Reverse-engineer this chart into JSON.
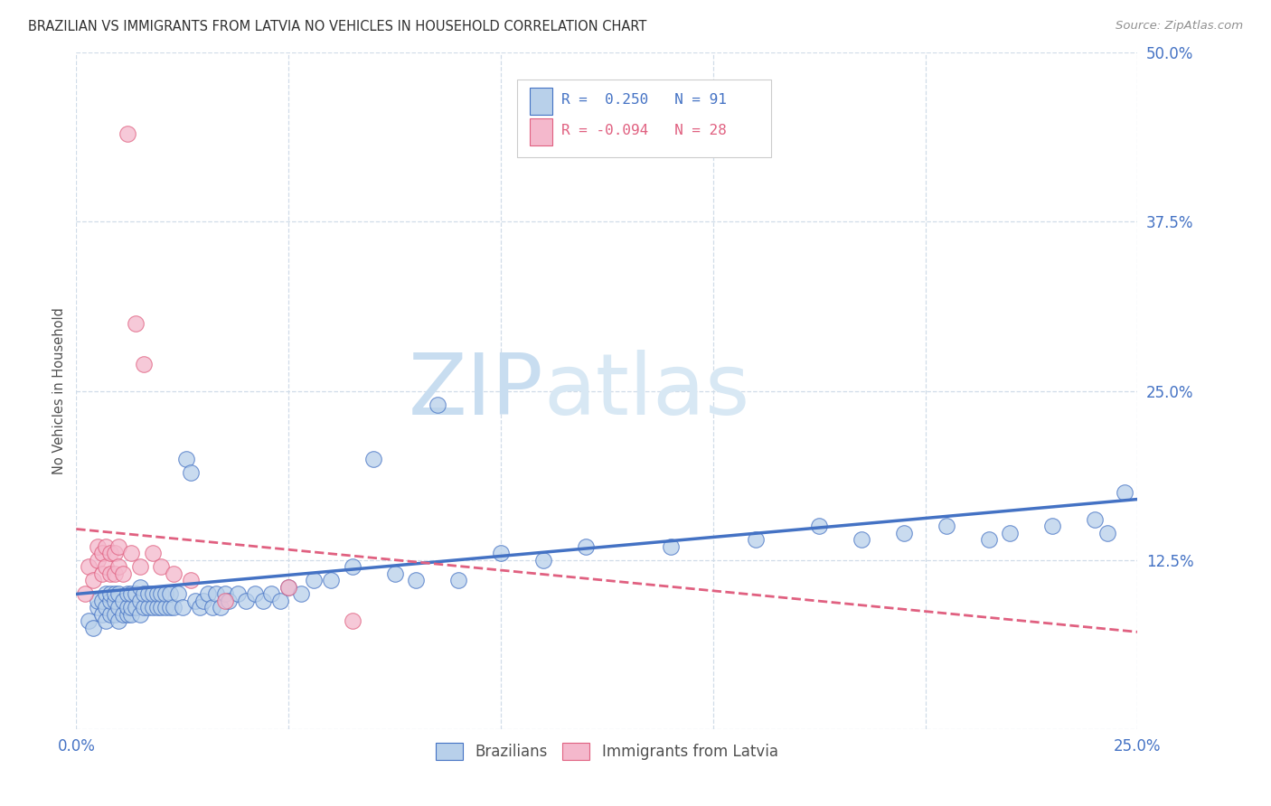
{
  "title": "BRAZILIAN VS IMMIGRANTS FROM LATVIA NO VEHICLES IN HOUSEHOLD CORRELATION CHART",
  "source": "Source: ZipAtlas.com",
  "ylabel": "No Vehicles in Household",
  "xlim": [
    0.0,
    0.25
  ],
  "ylim": [
    0.0,
    0.5
  ],
  "watermark_zip": "ZIP",
  "watermark_atlas": "atlas",
  "blue_color": "#b8d0ea",
  "pink_color": "#f4b8cc",
  "line_blue": "#4472c4",
  "line_pink": "#e06080",
  "grid_color": "#d0dce8",
  "title_color": "#303030",
  "tick_color": "#4472c4",
  "brazilians_x": [
    0.003,
    0.004,
    0.005,
    0.005,
    0.006,
    0.006,
    0.007,
    0.007,
    0.007,
    0.008,
    0.008,
    0.008,
    0.009,
    0.009,
    0.009,
    0.01,
    0.01,
    0.01,
    0.011,
    0.011,
    0.012,
    0.012,
    0.012,
    0.013,
    0.013,
    0.013,
    0.014,
    0.014,
    0.015,
    0.015,
    0.015,
    0.016,
    0.016,
    0.017,
    0.017,
    0.018,
    0.018,
    0.019,
    0.019,
    0.02,
    0.02,
    0.021,
    0.021,
    0.022,
    0.022,
    0.023,
    0.024,
    0.025,
    0.026,
    0.027,
    0.028,
    0.029,
    0.03,
    0.031,
    0.032,
    0.033,
    0.034,
    0.035,
    0.036,
    0.038,
    0.04,
    0.042,
    0.044,
    0.046,
    0.048,
    0.05,
    0.053,
    0.056,
    0.06,
    0.065,
    0.07,
    0.075,
    0.08,
    0.085,
    0.09,
    0.1,
    0.11,
    0.12,
    0.14,
    0.16,
    0.175,
    0.185,
    0.195,
    0.205,
    0.215,
    0.22,
    0.23,
    0.24,
    0.243,
    0.247
  ],
  "brazilians_y": [
    0.08,
    0.075,
    0.09,
    0.095,
    0.085,
    0.095,
    0.08,
    0.09,
    0.1,
    0.085,
    0.095,
    0.1,
    0.085,
    0.095,
    0.1,
    0.08,
    0.09,
    0.1,
    0.085,
    0.095,
    0.085,
    0.09,
    0.1,
    0.085,
    0.09,
    0.1,
    0.09,
    0.1,
    0.085,
    0.095,
    0.105,
    0.09,
    0.1,
    0.09,
    0.1,
    0.09,
    0.1,
    0.09,
    0.1,
    0.09,
    0.1,
    0.09,
    0.1,
    0.09,
    0.1,
    0.09,
    0.1,
    0.09,
    0.2,
    0.19,
    0.095,
    0.09,
    0.095,
    0.1,
    0.09,
    0.1,
    0.09,
    0.1,
    0.095,
    0.1,
    0.095,
    0.1,
    0.095,
    0.1,
    0.095,
    0.105,
    0.1,
    0.11,
    0.11,
    0.12,
    0.2,
    0.115,
    0.11,
    0.24,
    0.11,
    0.13,
    0.125,
    0.135,
    0.135,
    0.14,
    0.15,
    0.14,
    0.145,
    0.15,
    0.14,
    0.145,
    0.15,
    0.155,
    0.145,
    0.175
  ],
  "latvia_x": [
    0.002,
    0.003,
    0.004,
    0.005,
    0.005,
    0.006,
    0.006,
    0.007,
    0.007,
    0.008,
    0.008,
    0.009,
    0.009,
    0.01,
    0.01,
    0.011,
    0.012,
    0.013,
    0.014,
    0.015,
    0.016,
    0.018,
    0.02,
    0.023,
    0.027,
    0.035,
    0.05,
    0.065
  ],
  "latvia_y": [
    0.1,
    0.12,
    0.11,
    0.125,
    0.135,
    0.115,
    0.13,
    0.12,
    0.135,
    0.115,
    0.13,
    0.115,
    0.13,
    0.12,
    0.135,
    0.115,
    0.44,
    0.13,
    0.3,
    0.12,
    0.27,
    0.13,
    0.12,
    0.115,
    0.11,
    0.095,
    0.105,
    0.08
  ],
  "blue_trend_x": [
    0.0,
    0.25
  ],
  "blue_trend_y": [
    0.1,
    0.17
  ],
  "pink_trend_x": [
    0.0,
    0.25
  ],
  "pink_trend_y": [
    0.148,
    0.072
  ]
}
